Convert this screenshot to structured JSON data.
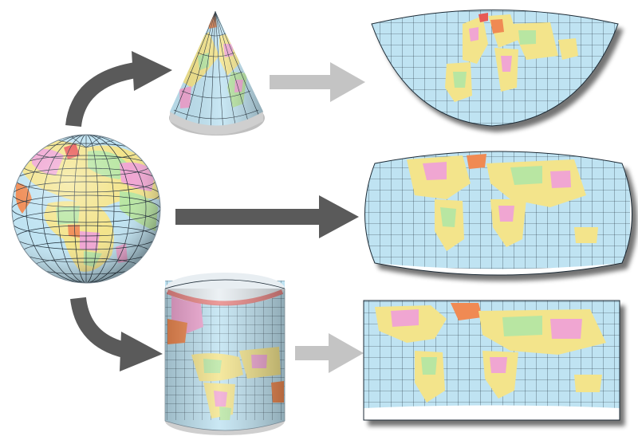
{
  "diagram": {
    "colors": {
      "ocean": "#bfe3f2",
      "ocean_dark": "#8fc3dc",
      "grid": "#1c2a35",
      "land_yellow": "#f3e48b",
      "land_pink": "#f0a6d2",
      "land_green": "#b8e6a2",
      "land_orange": "#f08a52",
      "land_red": "#e85a55",
      "arrow_dark": "#5a5a5a",
      "arrow_light": "#c4c4c4",
      "shadow": "#6b6b6b"
    },
    "icons": [
      "globe",
      "cone",
      "cylinder",
      "conic-map",
      "pseudocylindrical-map",
      "cylindrical-map"
    ]
  }
}
